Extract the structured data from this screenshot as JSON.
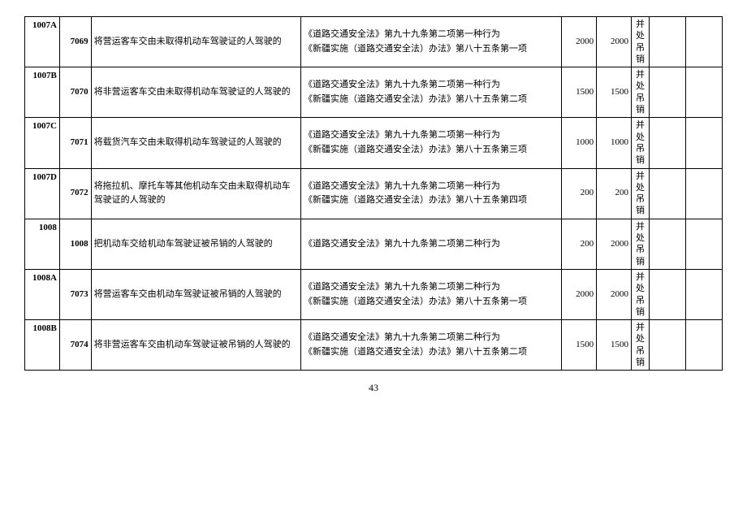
{
  "page_number": "43",
  "rows": [
    {
      "code1": "1007A",
      "code2": "7069",
      "desc": "将营运客车交由未取得机动车驾驶证的人驾驶的",
      "law": "《道路交通安全法》第九十九条第二项第一种行为\n《新疆实施（道路交通安全法）办法》第八十五条第一项",
      "num1": "2000",
      "num2": "2000",
      "note": "并处吊销"
    },
    {
      "code1": "1007B",
      "code2": "7070",
      "desc": "将非营运客车交由未取得机动车驾驶证的人驾驶的",
      "law": "《道路交通安全法》第九十九条第二项第一种行为\n《新疆实施（道路交通安全法）办法》第八十五条第二项",
      "num1": "1500",
      "num2": "1500",
      "note": "并处吊销"
    },
    {
      "code1": "1007C",
      "code2": "7071",
      "desc": "将载货汽车交由未取得机动车驾驶证的人驾驶的",
      "law": "《道路交通安全法》第九十九条第二项第一种行为\n《新疆实施（道路交通安全法）办法》第八十五条第三项",
      "num1": "1000",
      "num2": "1000",
      "note": "并处吊销"
    },
    {
      "code1": "1007D",
      "code2": "7072",
      "desc": "将拖拉机、摩托车等其他机动车交由未取得机动车驾驶证的人驾驶的",
      "law": "《道路交通安全法》第九十九条第二项第一种行为\n《新疆实施（道路交通安全法）办法》第八十五条第四项",
      "num1": "200",
      "num2": "200",
      "note": "并处吊销"
    },
    {
      "code1": "1008",
      "code2": "1008",
      "desc": "把机动车交给机动车驾驶证被吊销的人驾驶的",
      "law": "《道路交通安全法》第九十九条第二项第二种行为",
      "num1": "200",
      "num2": "2000",
      "note": "并处吊销"
    },
    {
      "code1": "1008A",
      "code2": "7073",
      "desc": "将营运客车交由机动车驾驶证被吊销的人驾驶的",
      "law": "《道路交通安全法》第九十九条第二项第二种行为\n《新疆实施（道路交通安全法）办法》第八十五条第一项",
      "num1": "2000",
      "num2": "2000",
      "note": "并处吊销"
    },
    {
      "code1": "1008B",
      "code2": "7074",
      "desc": "将非营运客车交由机动车驾驶证被吊销的人驾驶的",
      "law": "《道路交通安全法》第九十九条第二项第二种行为\n《新疆实施（道路交通安全法）办法》第八十五条第二项",
      "num1": "1500",
      "num2": "1500",
      "note": "并处吊销"
    }
  ]
}
